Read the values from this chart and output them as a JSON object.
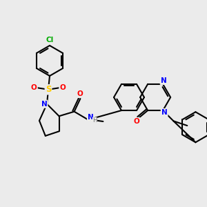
{
  "bg_color": "#ebebeb",
  "bond_color": "#000000",
  "bond_width": 1.5,
  "atom_colors": {
    "N": "#0000ff",
    "O": "#ff0000",
    "S": "#ffcc00",
    "Cl": "#00aa00",
    "C": "#000000",
    "H": "#666666"
  },
  "font_size_atom": 7.5,
  "font_size_small": 6.0
}
